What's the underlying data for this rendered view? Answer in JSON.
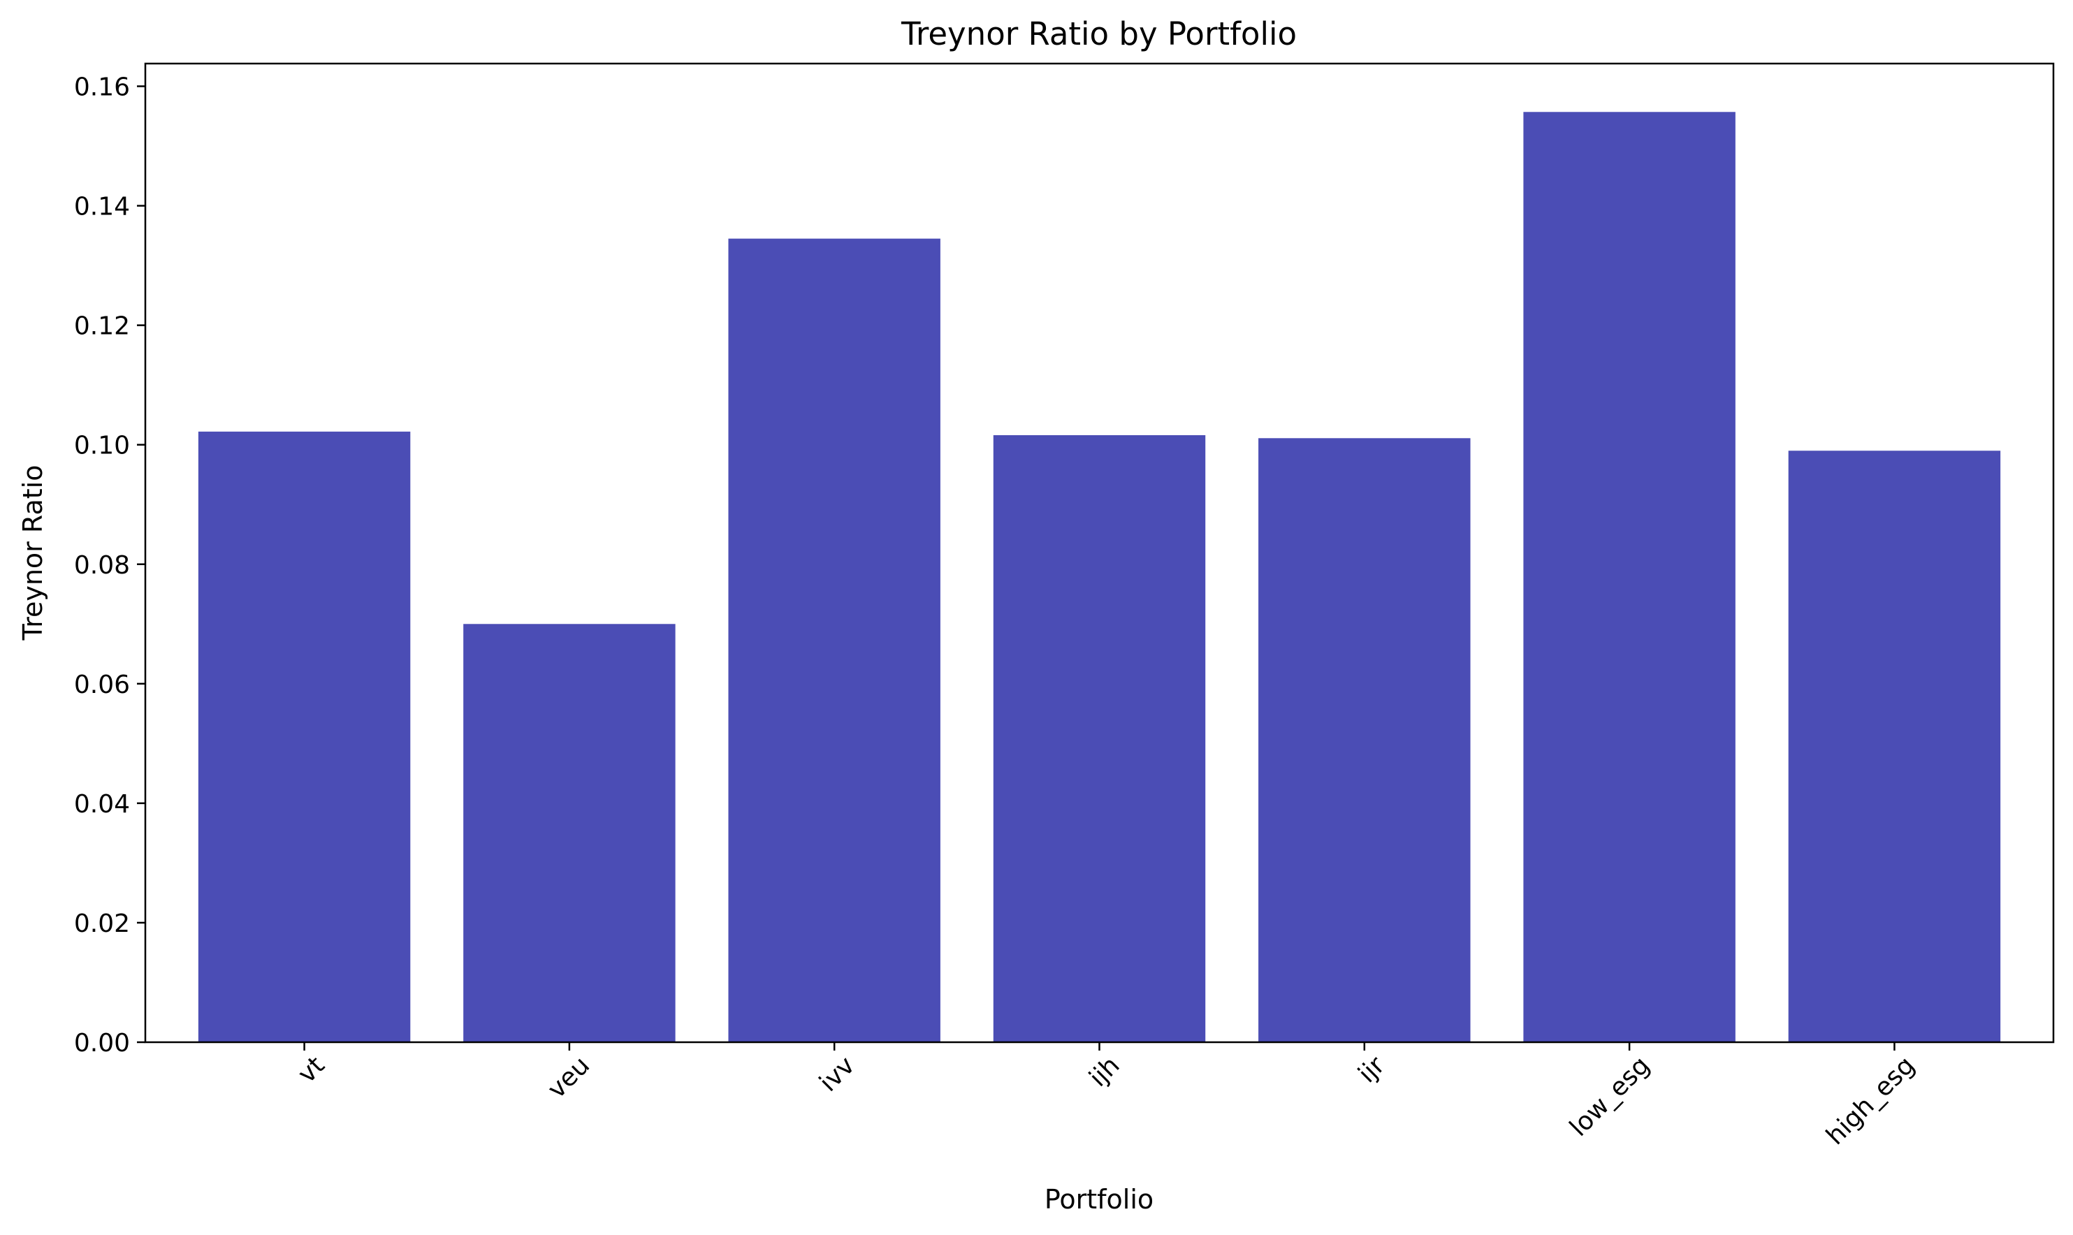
{
  "chart_data": {
    "type": "bar",
    "title": "Treynor Ratio by Portfolio",
    "xlabel": "Portfolio",
    "ylabel": "Treynor Ratio",
    "categories": [
      "vt",
      "veu",
      "ivv",
      "ijh",
      "ijr",
      "low_esg",
      "high_esg"
    ],
    "values": [
      0.1022,
      0.07,
      0.1345,
      0.1016,
      0.1011,
      0.1557,
      0.099
    ],
    "ylim": [
      0,
      0.1638
    ],
    "yticks": [
      "0.00",
      "0.02",
      "0.04",
      "0.06",
      "0.08",
      "0.10",
      "0.12",
      "0.14",
      "0.16"
    ],
    "xtick_rotation": 45,
    "grid": false,
    "legend": "none",
    "bar_color": "#4b4db5"
  }
}
